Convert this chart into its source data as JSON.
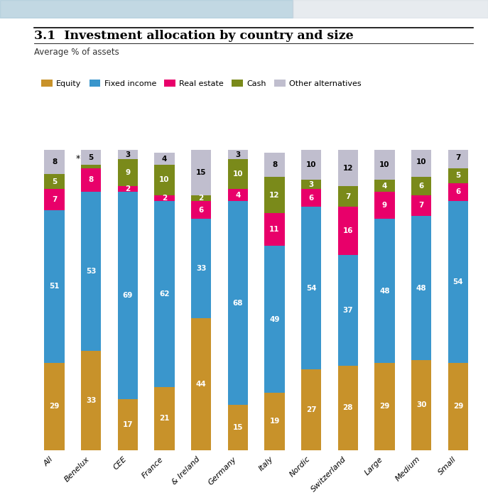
{
  "title": "3.1  Investment allocation by country and size",
  "subtitle": "Average % of assets",
  "categories": [
    "All",
    "Benelux",
    "CEE",
    "France",
    "& Ireland",
    "Germany",
    "Italy",
    "Nordic",
    "Switzerland",
    "Large",
    "Medium",
    "Small"
  ],
  "segments": [
    "Equity",
    "Fixed income",
    "Real estate",
    "Cash",
    "Other alternatives"
  ],
  "colors": {
    "Equity": "#C8922A",
    "Fixed income": "#3A96CC",
    "Real estate": "#E8006A",
    "Cash": "#7A8A1A",
    "Other alternatives": "#C0BECE"
  },
  "values": {
    "Equity": [
      29,
      33,
      17,
      21,
      44,
      15,
      19,
      27,
      28,
      29,
      30,
      29
    ],
    "Fixed income": [
      51,
      53,
      69,
      62,
      33,
      68,
      49,
      54,
      37,
      48,
      48,
      54
    ],
    "Real estate": [
      7,
      8,
      2,
      2,
      6,
      4,
      11,
      6,
      16,
      9,
      7,
      6
    ],
    "Cash": [
      5,
      1,
      9,
      10,
      2,
      10,
      12,
      3,
      7,
      4,
      6,
      5
    ],
    "Other alternatives": [
      8,
      5,
      3,
      4,
      15,
      3,
      8,
      10,
      12,
      10,
      10,
      7
    ]
  },
  "show_label": {
    "Equity": [
      true,
      true,
      true,
      true,
      true,
      true,
      true,
      true,
      true,
      true,
      true,
      true
    ],
    "Fixed income": [
      true,
      true,
      true,
      true,
      true,
      true,
      true,
      true,
      true,
      true,
      true,
      true
    ],
    "Real estate": [
      true,
      true,
      true,
      true,
      true,
      true,
      true,
      true,
      true,
      true,
      true,
      true
    ],
    "Cash": [
      true,
      false,
      true,
      true,
      true,
      true,
      true,
      true,
      true,
      true,
      true,
      true
    ],
    "Other alternatives": [
      true,
      true,
      true,
      true,
      true,
      true,
      true,
      true,
      true,
      true,
      true,
      true
    ]
  },
  "label_colors": {
    "Equity": "white",
    "Fixed income": "white",
    "Real estate": "white",
    "Cash": "white",
    "Other alternatives": "black"
  },
  "special_annotation": {
    "bar": 1,
    "text": "*"
  },
  "bar_width": 0.55,
  "figsize": [
    6.87,
    7.04
  ],
  "dpi": 100
}
